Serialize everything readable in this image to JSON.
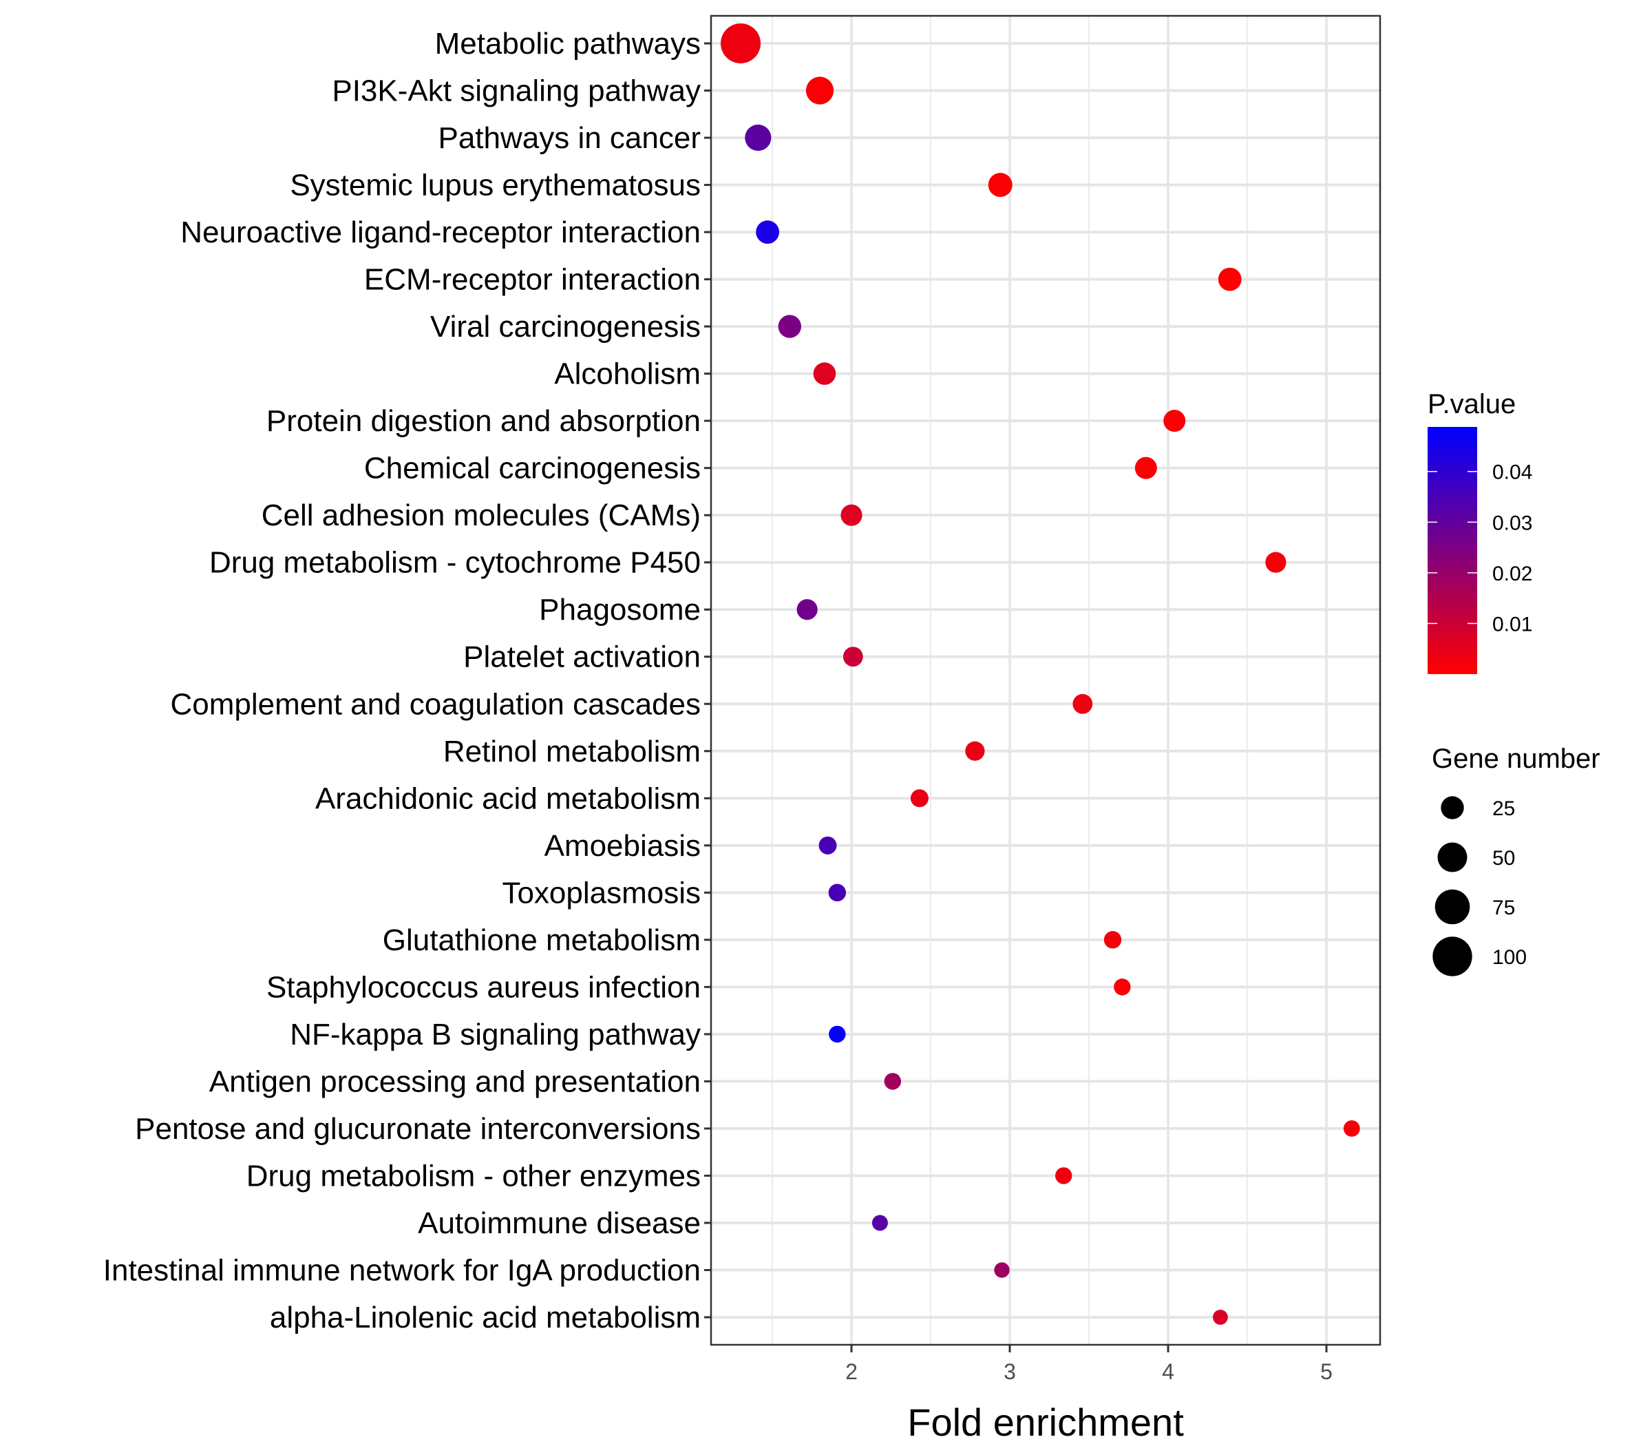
{
  "chart_data": {
    "type": "scatter",
    "title": "",
    "xlabel": "Fold enrichment",
    "ylabel": "",
    "xlim": [
      1.113,
      5.339
    ],
    "x_ticks": [
      2,
      3,
      4,
      5
    ],
    "x_tick_labels": [
      "2",
      "3",
      "4",
      "5"
    ],
    "grid": true,
    "categories": [
      "Metabolic pathways",
      "PI3K-Akt signaling pathway",
      "Pathways in cancer",
      "Systemic lupus erythematosus",
      "Neuroactive ligand-receptor interaction",
      "ECM-receptor interaction",
      "Viral carcinogenesis",
      "Alcoholism",
      "Protein digestion and absorption",
      "Chemical carcinogenesis",
      "Cell adhesion molecules (CAMs)",
      "Drug metabolism - cytochrome P450",
      "Phagosome",
      "Platelet activation",
      "Complement and coagulation cascades",
      "Retinol metabolism",
      "Arachidonic acid metabolism",
      "Amoebiasis",
      "Toxoplasmosis",
      "Glutathione metabolism",
      "Staphylococcus aureus infection",
      "NF-kappa B signaling pathway",
      "Antigen processing and presentation",
      "Pentose and glucuronate interconversions",
      "Drug metabolism - other enzymes",
      "Autoimmune disease",
      "Intestinal immune network for IgA production",
      "alpha-Linolenic acid metabolism"
    ],
    "fold_enrichment": [
      1.3,
      1.8,
      1.41,
      2.94,
      1.47,
      4.39,
      1.61,
      1.83,
      4.04,
      3.86,
      2.0,
      4.68,
      1.72,
      2.01,
      3.46,
      2.78,
      2.43,
      1.85,
      1.91,
      3.65,
      3.71,
      1.91,
      2.26,
      5.16,
      3.34,
      2.18,
      2.95,
      4.33
    ],
    "gene_number": [
      102,
      42,
      37,
      29,
      26,
      26,
      25,
      23,
      22,
      22,
      20,
      18,
      18,
      15,
      15,
      14,
      10,
      10,
      9,
      9,
      7,
      7,
      7,
      6,
      7,
      5,
      4,
      3
    ],
    "p_value": [
      0.003,
      0.001,
      0.031,
      0.001,
      0.044,
      0.0005,
      0.025,
      0.006,
      0.001,
      0.001,
      0.006,
      0.002,
      0.027,
      0.01,
      0.003,
      0.004,
      0.004,
      0.035,
      0.035,
      0.002,
      0.001,
      0.048,
      0.018,
      0.002,
      0.003,
      0.032,
      0.019,
      0.007
    ],
    "color_legend": {
      "title": "P.value",
      "range": [
        0,
        0.0488
      ],
      "ticks": [
        0.04,
        0.03,
        0.02,
        0.01
      ],
      "tick_labels": [
        "0.04",
        "0.03",
        "0.02",
        "0.01"
      ],
      "low_color": "#FF0000",
      "high_color": "#0000FF",
      "placement": "right"
    },
    "size_legend": {
      "title": "Gene number",
      "values": [
        25,
        50,
        75,
        100
      ],
      "labels": [
        "25",
        "50",
        "75",
        "100"
      ],
      "placement": "right"
    }
  }
}
